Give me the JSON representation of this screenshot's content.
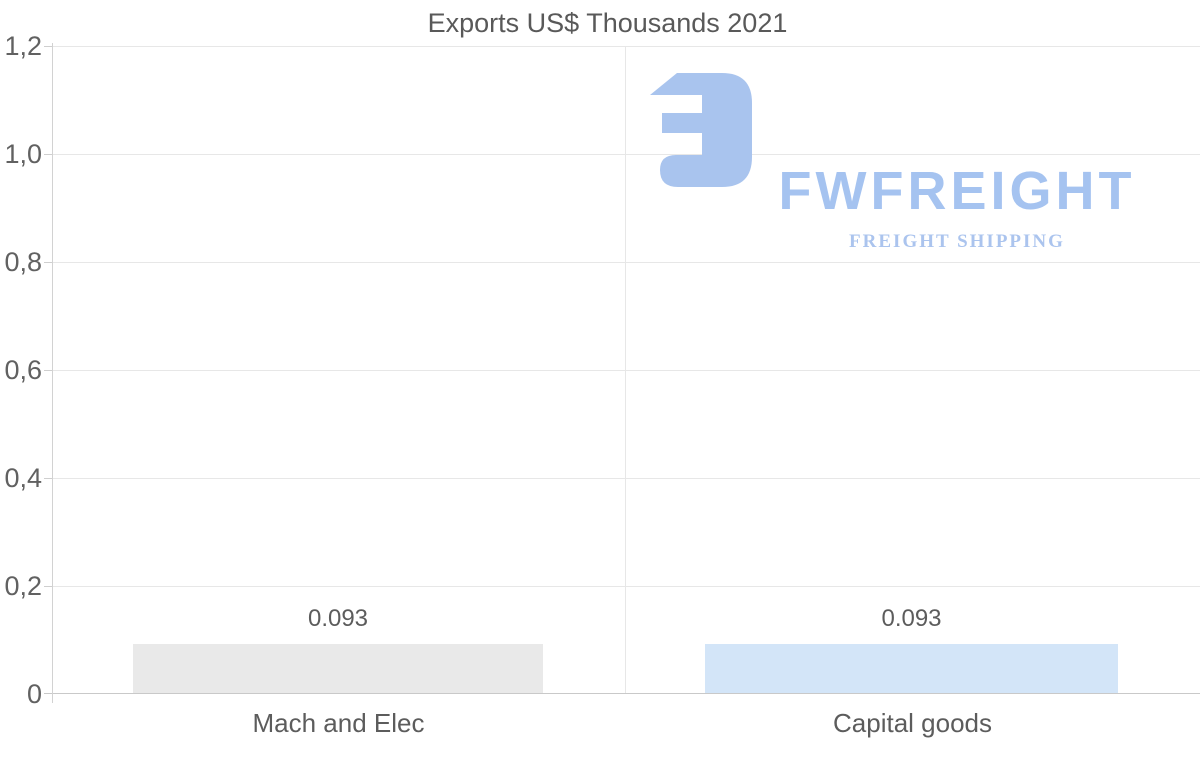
{
  "title": "Exports US$ Thousands 2021",
  "watermark": {
    "brand": "FWFREIGHT",
    "tagline": "FREIGHT SHIPPING",
    "brand_color": "#a5c3f0",
    "icon_color": "#a9c4ee"
  },
  "chart_data": {
    "type": "bar",
    "title": "Exports US$ Thousands 2021",
    "categories": [
      "Mach and Elec",
      "Capital goods"
    ],
    "values": [
      0.093,
      0.093
    ],
    "value_labels": [
      "0.093",
      "0.093"
    ],
    "bar_colors": [
      "#e9e9e9",
      "#d3e5f8"
    ],
    "xlabel": "",
    "ylabel": "",
    "ylim": [
      0,
      1.2
    ],
    "ytick_labels": [
      "1,2",
      "1,0",
      "0,8",
      "0,6",
      "0,4",
      "0,2",
      "0"
    ],
    "decimal_style_axis": "comma",
    "grid": true,
    "legend": "none"
  }
}
